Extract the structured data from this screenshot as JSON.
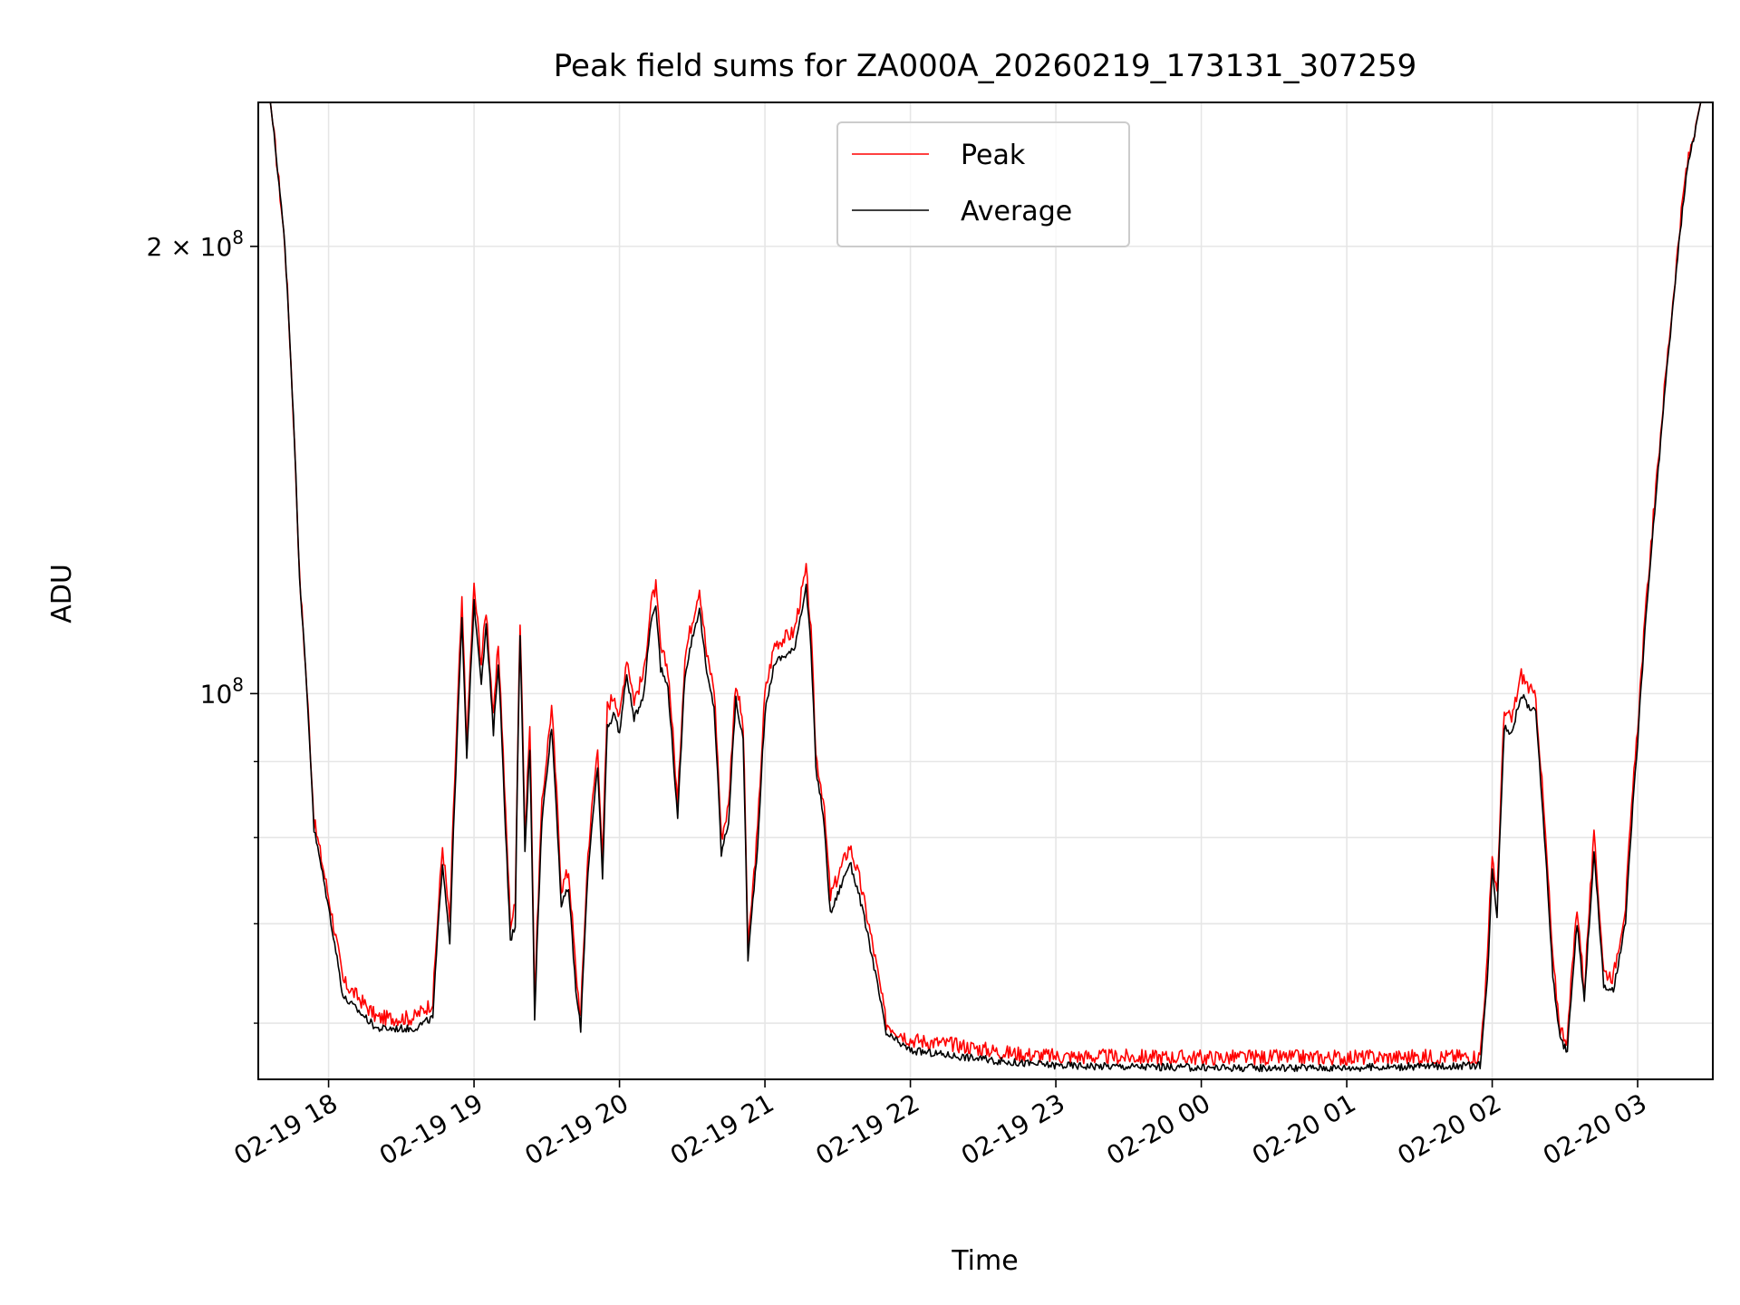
{
  "chart_data": {
    "type": "line",
    "title": "Peak field sums for ZA000A_20260219_173131_307259",
    "xlabel": "Time",
    "ylabel": "ADU",
    "yscale": "log",
    "ylim": [
      55000000,
      250000000
    ],
    "xlim": [
      "02-19 17:31",
      "02-20 03:31"
    ],
    "grid": true,
    "legend_position": "upper center",
    "x_ticks": [
      "02-19 18",
      "02-19 19",
      "02-19 20",
      "02-19 21",
      "02-19 22",
      "02-19 23",
      "02-20 00",
      "02-20 01",
      "02-20 02",
      "02-20 03"
    ],
    "y_tick_labels": [
      {
        "value": 200000000,
        "mantissa": "2",
        "times": "×",
        "base": "10",
        "exp": "8"
      },
      {
        "value": 100000000,
        "mantissa": "",
        "times": "",
        "base": "10",
        "exp": "8"
      }
    ],
    "y_minor_ticks": [
      60000000,
      70000000,
      80000000,
      90000000
    ],
    "series": [
      {
        "name": "Peak",
        "color": "#ff0000",
        "points": [
          [
            "02-19 17:31",
            250000000
          ],
          [
            "02-19 17:36",
            250000000
          ],
          [
            "02-19 17:42",
            200000000
          ],
          [
            "02-19 17:48",
            120000000
          ],
          [
            "02-19 17:54",
            82000000
          ],
          [
            "02-19 18:06",
            64000000
          ],
          [
            "02-19 18:20",
            60500000
          ],
          [
            "02-19 18:35",
            60500000
          ],
          [
            "02-19 18:43",
            62000000
          ],
          [
            "02-19 18:47",
            79000000
          ],
          [
            "02-19 18:50",
            70000000
          ],
          [
            "02-19 18:53",
            96000000
          ],
          [
            "02-19 18:55",
            115000000
          ],
          [
            "02-19 18:57",
            92000000
          ],
          [
            "02-19 19:00",
            118000000
          ],
          [
            "02-19 19:03",
            105000000
          ],
          [
            "02-19 19:05",
            114000000
          ],
          [
            "02-19 19:08",
            96000000
          ],
          [
            "02-19 19:10",
            108000000
          ],
          [
            "02-19 19:13",
            83000000
          ],
          [
            "02-19 19:15",
            70000000
          ],
          [
            "02-19 19:17",
            72000000
          ],
          [
            "02-19 19:19",
            112000000
          ],
          [
            "02-19 19:21",
            80000000
          ],
          [
            "02-19 19:23",
            95000000
          ],
          [
            "02-19 19:25",
            62000000
          ],
          [
            "02-19 19:28",
            84000000
          ],
          [
            "02-19 19:32",
            98000000
          ],
          [
            "02-19 19:36",
            74000000
          ],
          [
            "02-19 19:39",
            76000000
          ],
          [
            "02-19 19:42",
            65000000
          ],
          [
            "02-19 19:44",
            60500000
          ],
          [
            "02-19 19:47",
            78000000
          ],
          [
            "02-19 19:51",
            92000000
          ],
          [
            "02-19 19:53",
            77000000
          ],
          [
            "02-19 19:55",
            98000000
          ],
          [
            "02-19 19:58",
            100000000
          ],
          [
            "02-19 20:00",
            96000000
          ],
          [
            "02-19 20:03",
            106000000
          ],
          [
            "02-19 20:06",
            99000000
          ],
          [
            "02-19 20:10",
            103000000
          ],
          [
            "02-19 20:13",
            115000000
          ],
          [
            "02-19 20:15",
            118000000
          ],
          [
            "02-19 20:17",
            107000000
          ],
          [
            "02-19 20:20",
            104000000
          ],
          [
            "02-19 20:24",
            84000000
          ],
          [
            "02-19 20:27",
            106000000
          ],
          [
            "02-19 20:30",
            112000000
          ],
          [
            "02-19 20:33",
            118000000
          ],
          [
            "02-19 20:36",
            106000000
          ],
          [
            "02-19 20:39",
            101000000
          ],
          [
            "02-19 20:42",
            80000000
          ],
          [
            "02-19 20:45",
            84000000
          ],
          [
            "02-19 20:48",
            102000000
          ],
          [
            "02-19 20:51",
            95000000
          ],
          [
            "02-19 20:53",
            67000000
          ],
          [
            "02-19 20:57",
            81000000
          ],
          [
            "02-19 21:00",
            100000000
          ],
          [
            "02-19 21:04",
            108000000
          ],
          [
            "02-19 21:08",
            109000000
          ],
          [
            "02-19 21:12",
            110000000
          ],
          [
            "02-19 21:17",
            121000000
          ],
          [
            "02-19 21:19",
            110000000
          ],
          [
            "02-19 21:21",
            91000000
          ],
          [
            "02-19 21:24",
            85000000
          ],
          [
            "02-19 21:27",
            73000000
          ],
          [
            "02-19 21:31",
            76000000
          ],
          [
            "02-19 21:35",
            79000000
          ],
          [
            "02-19 21:39",
            75000000
          ],
          [
            "02-19 21:45",
            67000000
          ],
          [
            "02-19 21:50",
            60000000
          ],
          [
            "02-19 22:00",
            58500000
          ],
          [
            "02-19 22:20",
            58000000
          ],
          [
            "02-19 22:40",
            57300000
          ],
          [
            "02-19 23:00",
            57000000
          ],
          [
            "02-20 00:00",
            56900000
          ],
          [
            "02-20 01:00",
            56900000
          ],
          [
            "02-20 01:55",
            57000000
          ],
          [
            "02-20 01:58",
            66000000
          ],
          [
            "02-20 02:00",
            78000000
          ],
          [
            "02-20 02:02",
            73000000
          ],
          [
            "02-20 02:05",
            97000000
          ],
          [
            "02-20 02:08",
            96000000
          ],
          [
            "02-20 02:12",
            103000000
          ],
          [
            "02-20 02:15",
            101000000
          ],
          [
            "02-20 02:18",
            99000000
          ],
          [
            "02-20 02:22",
            80000000
          ],
          [
            "02-20 02:25",
            66000000
          ],
          [
            "02-20 02:28",
            59500000
          ],
          [
            "02-20 02:31",
            58500000
          ],
          [
            "02-20 02:35",
            72000000
          ],
          [
            "02-20 02:38",
            63000000
          ],
          [
            "02-20 02:42",
            80000000
          ],
          [
            "02-20 02:46",
            65000000
          ],
          [
            "02-20 02:50",
            64500000
          ],
          [
            "02-20 02:55",
            72000000
          ],
          [
            "02-20 03:00",
            95000000
          ],
          [
            "02-20 03:08",
            140000000
          ],
          [
            "02-20 03:14",
            180000000
          ],
          [
            "02-20 03:20",
            225000000
          ],
          [
            "02-20 03:26",
            250000000
          ],
          [
            "02-20 03:31",
            250000000
          ]
        ]
      },
      {
        "name": "Average",
        "color": "#000000",
        "points": [
          [
            "02-19 17:31",
            250000000
          ],
          [
            "02-19 17:36",
            250000000
          ],
          [
            "02-19 17:42",
            200000000
          ],
          [
            "02-19 17:48",
            120000000
          ],
          [
            "02-19 17:54",
            81000000
          ],
          [
            "02-19 18:06",
            62500000
          ],
          [
            "02-19 18:20",
            59500000
          ],
          [
            "02-19 18:35",
            59500000
          ],
          [
            "02-19 18:43",
            60500000
          ],
          [
            "02-19 18:47",
            77000000
          ],
          [
            "02-19 18:50",
            68000000
          ],
          [
            "02-19 18:53",
            93000000
          ],
          [
            "02-19 18:55",
            112000000
          ],
          [
            "02-19 18:57",
            90000000
          ],
          [
            "02-19 19:00",
            115000000
          ],
          [
            "02-19 19:03",
            102000000
          ],
          [
            "02-19 19:05",
            111000000
          ],
          [
            "02-19 19:08",
            94000000
          ],
          [
            "02-19 19:10",
            105000000
          ],
          [
            "02-19 19:13",
            81000000
          ],
          [
            "02-19 19:15",
            68000000
          ],
          [
            "02-19 19:17",
            70000000
          ],
          [
            "02-19 19:19",
            109000000
          ],
          [
            "02-19 19:21",
            78000000
          ],
          [
            "02-19 19:23",
            92000000
          ],
          [
            "02-19 19:25",
            60500000
          ],
          [
            "02-19 19:28",
            82000000
          ],
          [
            "02-19 19:32",
            95000000
          ],
          [
            "02-19 19:36",
            72000000
          ],
          [
            "02-19 19:39",
            74000000
          ],
          [
            "02-19 19:42",
            63000000
          ],
          [
            "02-19 19:44",
            59500000
          ],
          [
            "02-19 19:47",
            76000000
          ],
          [
            "02-19 19:51",
            89000000
          ],
          [
            "02-19 19:53",
            75000000
          ],
          [
            "02-19 19:55",
            95000000
          ],
          [
            "02-19 19:58",
            97000000
          ],
          [
            "02-19 20:00",
            94000000
          ],
          [
            "02-19 20:03",
            103000000
          ],
          [
            "02-19 20:06",
            96000000
          ],
          [
            "02-19 20:10",
            100000000
          ],
          [
            "02-19 20:13",
            112000000
          ],
          [
            "02-19 20:15",
            115000000
          ],
          [
            "02-19 20:17",
            104000000
          ],
          [
            "02-19 20:20",
            101000000
          ],
          [
            "02-19 20:24",
            82000000
          ],
          [
            "02-19 20:27",
            103000000
          ],
          [
            "02-19 20:30",
            109000000
          ],
          [
            "02-19 20:33",
            114000000
          ],
          [
            "02-19 20:36",
            103000000
          ],
          [
            "02-19 20:39",
            98000000
          ],
          [
            "02-19 20:42",
            78000000
          ],
          [
            "02-19 20:45",
            82000000
          ],
          [
            "02-19 20:48",
            99000000
          ],
          [
            "02-19 20:51",
            93000000
          ],
          [
            "02-19 20:53",
            66000000
          ],
          [
            "02-19 20:57",
            79000000
          ],
          [
            "02-19 21:00",
            97000000
          ],
          [
            "02-19 21:04",
            105000000
          ],
          [
            "02-19 21:08",
            106000000
          ],
          [
            "02-19 21:12",
            107000000
          ],
          [
            "02-19 21:17",
            118000000
          ],
          [
            "02-19 21:19",
            107000000
          ],
          [
            "02-19 21:21",
            89000000
          ],
          [
            "02-19 21:24",
            83000000
          ],
          [
            "02-19 21:27",
            71000000
          ],
          [
            "02-19 21:31",
            74000000
          ],
          [
            "02-19 21:35",
            77000000
          ],
          [
            "02-19 21:39",
            73000000
          ],
          [
            "02-19 21:45",
            65500000
          ],
          [
            "02-19 21:50",
            59000000
          ],
          [
            "02-19 22:00",
            57500000
          ],
          [
            "02-19 22:20",
            57000000
          ],
          [
            "02-19 22:40",
            56500000
          ],
          [
            "02-19 23:00",
            56200000
          ],
          [
            "02-20 00:00",
            56000000
          ],
          [
            "02-20 01:00",
            56000000
          ],
          [
            "02-20 01:55",
            56200000
          ],
          [
            "02-20 01:58",
            64000000
          ],
          [
            "02-20 02:00",
            76000000
          ],
          [
            "02-20 02:02",
            71000000
          ],
          [
            "02-20 02:05",
            95000000
          ],
          [
            "02-20 02:08",
            94000000
          ],
          [
            "02-20 02:12",
            100000000
          ],
          [
            "02-20 02:15",
            98000000
          ],
          [
            "02-20 02:18",
            97000000
          ],
          [
            "02-20 02:22",
            78000000
          ],
          [
            "02-20 02:25",
            64500000
          ],
          [
            "02-20 02:28",
            58500000
          ],
          [
            "02-20 02:31",
            57500000
          ],
          [
            "02-20 02:35",
            70000000
          ],
          [
            "02-20 02:38",
            62000000
          ],
          [
            "02-20 02:42",
            78000000
          ],
          [
            "02-20 02:46",
            63500000
          ],
          [
            "02-20 02:50",
            63000000
          ],
          [
            "02-20 02:55",
            70000000
          ],
          [
            "02-20 03:00",
            93000000
          ],
          [
            "02-20 03:08",
            138000000
          ],
          [
            "02-20 03:14",
            178000000
          ],
          [
            "02-20 03:20",
            223000000
          ],
          [
            "02-20 03:26",
            250000000
          ],
          [
            "02-20 03:31",
            250000000
          ]
        ]
      }
    ]
  }
}
